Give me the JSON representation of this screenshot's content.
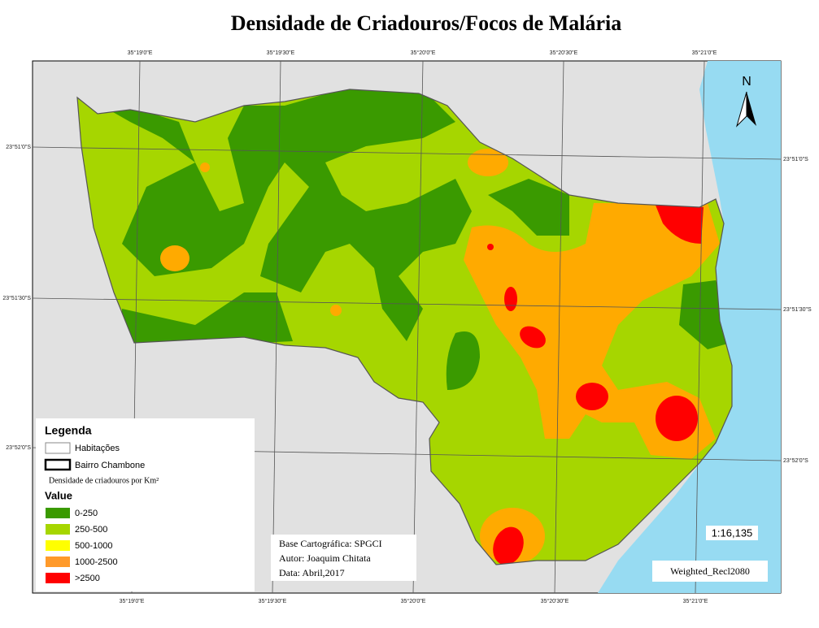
{
  "title": "Densidade de Criadouros/Focos  de Malária",
  "coordinates": {
    "top": [
      "35°19'0\"E",
      "35°19'30\"E",
      "35°20'0\"E",
      "35°20'30\"E",
      "35°21'0\"E"
    ],
    "bottom": [
      "35°19'0\"E",
      "35°19'30\"E",
      "35°20'0\"E",
      "35°20'30\"E",
      "35°21'0\"E"
    ],
    "left": [
      "23°51'0\"S",
      "23°51'30\"S",
      "23°52'0\"S"
    ],
    "right": [
      "23°51'0\"S",
      "23°51'30\"S",
      "23°52'0\"S"
    ]
  },
  "north": "N",
  "legend": {
    "title": "Legenda",
    "items": [
      {
        "label": "Habitações",
        "color": "#ffffff"
      },
      {
        "label": "Bairro Chambone",
        "color": "#ffffff"
      }
    ],
    "subtitle": "Densidade de criadouros por Km²",
    "value_title": "Value",
    "classes": [
      {
        "label": "0-250",
        "color": "#3a9a00"
      },
      {
        "label": "250-500",
        "color": "#a6d600"
      },
      {
        "label": "500-1000",
        "color": "#ffff00"
      },
      {
        "label": "1000-2500",
        "color": "#ff9a2a"
      },
      {
        "label": ">2500",
        "color": "#ff0000"
      }
    ]
  },
  "credits": [
    "Base Cartográfica:  SPGCI",
    "Autor: Joaquim Chitata",
    "Data: Abril,2017"
  ],
  "scale": "1:16,135",
  "layer_label": "Weighted_Recl2080"
}
